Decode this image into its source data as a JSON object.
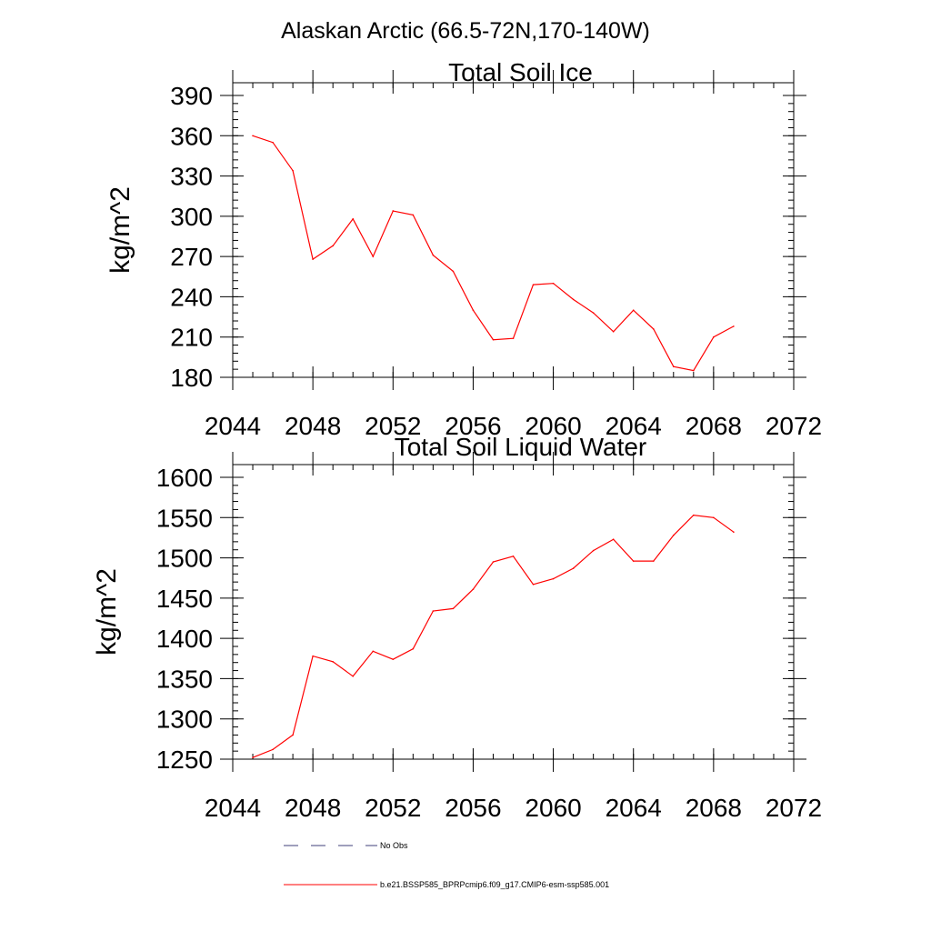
{
  "page_title": "Alaskan Arctic (66.5-72N,170-140W)",
  "chart_data": [
    {
      "type": "line",
      "title": "Total Soil Ice",
      "xlabel": "",
      "ylabel": "kg/m^2",
      "xlim": [
        2044,
        2072
      ],
      "ylim": [
        180,
        390
      ],
      "xticks": [
        2044,
        2048,
        2052,
        2056,
        2060,
        2064,
        2068,
        2072
      ],
      "yticks": [
        180,
        210,
        240,
        270,
        300,
        330,
        360,
        390
      ],
      "x": [
        2045,
        2046,
        2047,
        2048,
        2049,
        2050,
        2051,
        2052,
        2053,
        2054,
        2055,
        2056,
        2057,
        2058,
        2059,
        2060,
        2061,
        2062,
        2063,
        2064,
        2065,
        2066,
        2067,
        2068,
        2069
      ],
      "series": [
        {
          "name": "b.e21.BSSP585_BPRPcmip6.f09_g17.CMIP6-esm-ssp585.001",
          "color": "#ff0000",
          "values": [
            360,
            355,
            334,
            268,
            278,
            298,
            270,
            304,
            301,
            271,
            259,
            230,
            208,
            209,
            249,
            250,
            238,
            228,
            214,
            230,
            216,
            188,
            185,
            210,
            218
          ]
        }
      ]
    },
    {
      "type": "line",
      "title": "Total Soil Liquid Water",
      "xlabel": "",
      "ylabel": "kg/m^2",
      "xlim": [
        2044,
        2072
      ],
      "ylim": [
        1250,
        1600
      ],
      "xticks": [
        2044,
        2048,
        2052,
        2056,
        2060,
        2064,
        2068,
        2072
      ],
      "yticks": [
        1250,
        1300,
        1350,
        1400,
        1450,
        1500,
        1550,
        1600
      ],
      "x": [
        2045,
        2046,
        2047,
        2048,
        2049,
        2050,
        2051,
        2052,
        2053,
        2054,
        2055,
        2056,
        2057,
        2058,
        2059,
        2060,
        2061,
        2062,
        2063,
        2064,
        2065,
        2066,
        2067,
        2068,
        2069
      ],
      "series": [
        {
          "name": "b.e21.BSSP585_BPRPcmip6.f09_g17.CMIP6-esm-ssp585.001",
          "color": "#ff0000",
          "values": [
            1252,
            1262,
            1280,
            1378,
            1371,
            1353,
            1384,
            1374,
            1387,
            1434,
            1437,
            1461,
            1495,
            1502,
            1467,
            1474,
            1487,
            1509,
            1523,
            1496,
            1496,
            1528,
            1553,
            1550,
            1532
          ]
        }
      ]
    }
  ],
  "legend": {
    "items": [
      {
        "label": "No Obs",
        "color": "#3f3f7a",
        "style": "dashed"
      },
      {
        "label": "b.e21.BSSP585_BPRPcmip6.f09_g17.CMIP6-esm-ssp585.001",
        "color": "#ff0000",
        "style": "solid"
      }
    ]
  }
}
